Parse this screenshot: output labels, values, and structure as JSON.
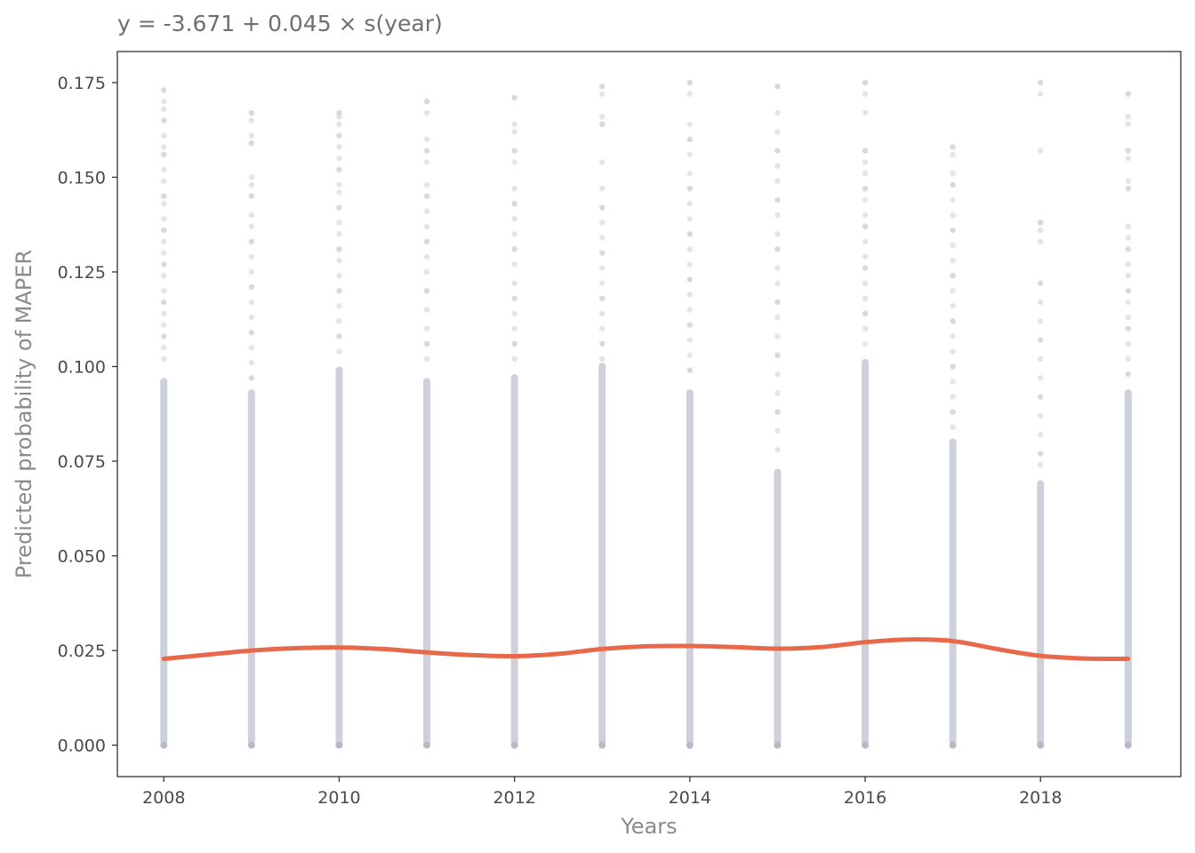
{
  "chart_data": {
    "type": "scatter",
    "title": "y = -3.671 + 0.045 × s(year)",
    "xlabel": "Years",
    "ylabel": "Predicted probability of MAPER",
    "xlim": [
      2007.47,
      2019.6
    ],
    "ylim": [
      -0.0083,
      0.1832
    ],
    "x_ticks": [
      2008,
      2010,
      2012,
      2014,
      2016,
      2018
    ],
    "x_tick_labels": [
      "2008",
      "2010",
      "2012",
      "2014",
      "2016",
      "2018"
    ],
    "y_ticks": [
      0,
      0.025,
      0.05,
      0.075,
      0.1,
      0.125,
      0.15,
      0.175
    ],
    "y_tick_labels": [
      "0.000",
      "0.025",
      "0.050",
      "0.075",
      "0.100",
      "0.125",
      "0.150",
      "0.175"
    ],
    "grid": false,
    "legend": "none",
    "point_color": "#c9ccd6",
    "line_color": "#e8694a",
    "series": [
      {
        "type": "scatter",
        "x": [
          2008,
          2009,
          2010,
          2011,
          2012,
          2013,
          2014,
          2015,
          2016,
          2017,
          2018,
          2019
        ],
        "dense_max": [
          0.097,
          0.094,
          0.1,
          0.097,
          0.098,
          0.101,
          0.094,
          0.073,
          0.102,
          0.081,
          0.07,
          0.094
        ],
        "y_min": [
          0,
          0,
          0,
          0,
          0,
          0,
          0,
          0,
          0,
          0,
          0,
          0
        ],
        "outliers": [
          [
            0.173,
            0.17,
            0.168,
            0.165,
            0.161,
            0.158,
            0.156,
            0.152,
            0.149,
            0.145,
            0.143,
            0.139,
            0.136,
            0.133,
            0.13,
            0.127,
            0.124,
            0.12,
            0.117,
            0.114,
            0.111,
            0.108,
            0.105,
            0.102
          ],
          [
            0.167,
            0.165,
            0.161,
            0.159,
            0.15,
            0.148,
            0.145,
            0.14,
            0.137,
            0.133,
            0.129,
            0.125,
            0.121,
            0.117,
            0.113,
            0.109,
            0.105,
            0.101,
            0.097
          ],
          [
            0.167,
            0.166,
            0.164,
            0.161,
            0.158,
            0.155,
            0.152,
            0.148,
            0.146,
            0.142,
            0.138,
            0.135,
            0.131,
            0.128,
            0.124,
            0.12,
            0.116,
            0.112,
            0.108,
            0.104
          ],
          [
            0.17,
            0.167,
            0.16,
            0.157,
            0.154,
            0.148,
            0.145,
            0.141,
            0.137,
            0.133,
            0.129,
            0.125,
            0.12,
            0.115,
            0.11,
            0.106,
            0.102
          ],
          [
            0.171,
            0.164,
            0.162,
            0.157,
            0.154,
            0.147,
            0.143,
            0.139,
            0.135,
            0.131,
            0.127,
            0.122,
            0.118,
            0.114,
            0.11,
            0.106,
            0.102
          ],
          [
            0.174,
            0.172,
            0.166,
            0.164,
            0.154,
            0.147,
            0.142,
            0.138,
            0.134,
            0.13,
            0.126,
            0.122,
            0.118,
            0.114,
            0.11,
            0.106,
            0.102
          ],
          [
            0.175,
            0.172,
            0.164,
            0.16,
            0.156,
            0.151,
            0.147,
            0.143,
            0.139,
            0.135,
            0.131,
            0.127,
            0.123,
            0.119,
            0.115,
            0.111,
            0.107,
            0.103,
            0.099
          ],
          [
            0.174,
            0.167,
            0.162,
            0.157,
            0.153,
            0.149,
            0.144,
            0.14,
            0.135,
            0.131,
            0.126,
            0.122,
            0.117,
            0.113,
            0.108,
            0.103,
            0.098,
            0.093,
            0.088,
            0.083,
            0.078
          ],
          [
            0.175,
            0.172,
            0.167,
            0.157,
            0.154,
            0.151,
            0.147,
            0.144,
            0.14,
            0.137,
            0.133,
            0.129,
            0.126,
            0.122,
            0.118,
            0.114,
            0.11,
            0.106
          ],
          [
            0.158,
            0.156,
            0.151,
            0.148,
            0.144,
            0.14,
            0.136,
            0.132,
            0.128,
            0.124,
            0.12,
            0.116,
            0.112,
            0.108,
            0.104,
            0.1,
            0.096,
            0.092,
            0.088,
            0.084
          ],
          [
            0.175,
            0.172,
            0.157,
            0.138,
            0.136,
            0.133,
            0.122,
            0.117,
            0.112,
            0.107,
            0.102,
            0.097,
            0.092,
            0.087,
            0.082,
            0.077,
            0.074
          ],
          [
            0.172,
            0.166,
            0.164,
            0.157,
            0.155,
            0.149,
            0.147,
            0.137,
            0.134,
            0.131,
            0.127,
            0.124,
            0.12,
            0.117,
            0.113,
            0.11,
            0.106,
            0.102,
            0.098
          ]
        ]
      },
      {
        "type": "line",
        "x": [
          2008,
          2008.5,
          2009,
          2009.5,
          2010,
          2010.5,
          2011,
          2011.5,
          2012,
          2012.5,
          2013,
          2013.5,
          2014,
          2014.5,
          2015,
          2015.5,
          2016,
          2016.5,
          2017,
          2017.5,
          2018,
          2018.5,
          2019
        ],
        "y": [
          0.0228,
          0.0239,
          0.025,
          0.0256,
          0.0258,
          0.0254,
          0.0245,
          0.0238,
          0.0235,
          0.0241,
          0.0254,
          0.0261,
          0.0262,
          0.0259,
          0.0255,
          0.0259,
          0.0272,
          0.0279,
          0.0275,
          0.0254,
          0.0236,
          0.0229,
          0.0228
        ]
      }
    ]
  }
}
